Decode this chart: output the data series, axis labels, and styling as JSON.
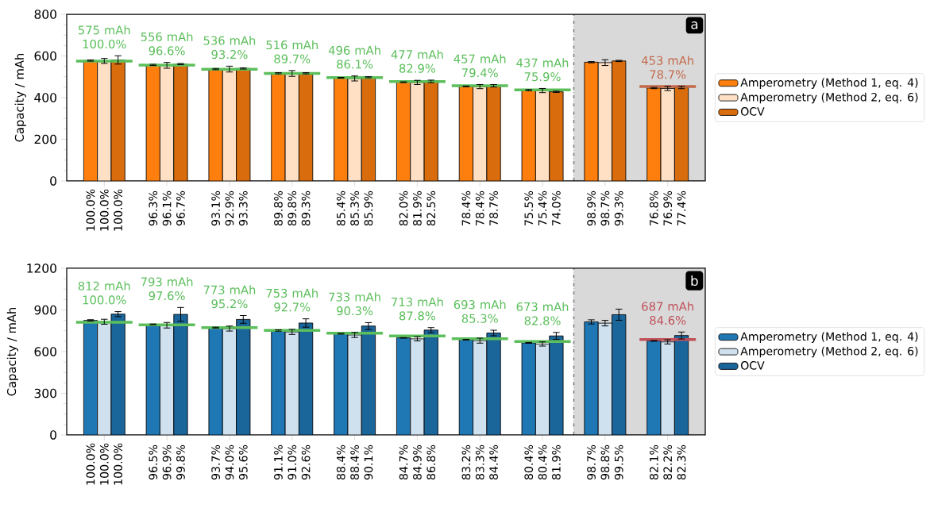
{
  "chart_data": [
    {
      "type": "bar",
      "ylabel": "Capacity / mAh",
      "ylim": [
        0,
        800
      ],
      "yticks": [
        0,
        200,
        400,
        600,
        800
      ],
      "legend": "right",
      "categories": [
        "100.0% 100.0% 100.0%",
        "96.3% 96.1% 96.7%",
        "93.1% 92.9% 93.3%",
        "89.8% 89.8% 89.3%",
        "85.4% 85.3% 85.9%",
        "82.0% 81.9% 82.5%",
        "78.4% 78.4% 78.7%",
        "75.5% 75.4% 74.0%",
        "98.9% 98.7% 99.3%",
        "76.8% 76.9% 77.4%"
      ],
      "series": [
        {
          "name": "Amperometry (Method 1, eq. 4)",
          "color": "#ff7f0e",
          "values": [
            578,
            557,
            537,
            517,
            495,
            474,
            454,
            436,
            570,
            446
          ],
          "errors": [
            3,
            3,
            3,
            3,
            2,
            2,
            2,
            3,
            3,
            3
          ]
        },
        {
          "name": "Amperometry (Method 2, eq. 6)",
          "color": "#ffe0c4",
          "values": [
            576,
            555,
            537,
            516,
            492,
            473,
            453,
            434,
            568,
            444
          ],
          "errors": [
            12,
            14,
            14,
            14,
            12,
            10,
            10,
            10,
            14,
            10
          ]
        },
        {
          "name": "OCV",
          "color": "#d96c0c",
          "values": [
            581,
            561,
            540,
            517,
            498,
            478,
            457,
            428,
            576,
            449
          ],
          "errors": [
            20,
            3,
            3,
            3,
            3,
            6,
            6,
            3,
            3,
            6
          ]
        }
      ],
      "ref_lines": [
        {
          "axis": "y",
          "value": 575,
          "color": "#5cbf5c"
        },
        {
          "axis": "y",
          "value": 556,
          "color": "#5cbf5c"
        },
        {
          "axis": "y",
          "value": 536,
          "color": "#5cbf5c"
        },
        {
          "axis": "y",
          "value": 516,
          "color": "#5cbf5c"
        },
        {
          "axis": "y",
          "value": 496,
          "color": "#5cbf5c"
        },
        {
          "axis": "y",
          "value": 477,
          "color": "#5cbf5c"
        },
        {
          "axis": "y",
          "value": 457,
          "color": "#5cbf5c"
        },
        {
          "axis": "y",
          "value": 437,
          "color": "#5cbf5c"
        },
        {
          "axis": "y",
          "value": 453,
          "color": "#c26a4a"
        }
      ],
      "annotations": [
        {
          "text": "575 mAh 100.0%",
          "x": "100.0% 100.0% 100.0%",
          "y": 575
        },
        {
          "text": "556 mAh 96.6%",
          "x": "96.3% 96.1% 96.7%",
          "y": 556
        },
        {
          "text": "536 mAh 93.2%",
          "x": "93.1% 92.9% 93.3%",
          "y": 536
        },
        {
          "text": "516 mAh 89.7%",
          "x": "89.8% 89.8% 89.3%",
          "y": 516
        },
        {
          "text": "496 mAh 86.1%",
          "x": "85.4% 85.3% 85.9%",
          "y": 496
        },
        {
          "text": "477 mAh 82.9%",
          "x": "82.0% 81.9% 82.5%",
          "y": 477
        },
        {
          "text": "457 mAh 79.4%",
          "x": "78.4% 78.4% 78.7%",
          "y": 457
        },
        {
          "text": "437 mAh 75.9%",
          "x": "75.5% 75.4% 74.0%",
          "y": 437
        },
        {
          "text": "453 mAh 78.7%",
          "x": "76.8% 76.9% 77.4%",
          "y": 453
        },
        "a"
      ]
    },
    {
      "type": "bar",
      "ylabel": "Capacity / mAh",
      "ylim": [
        0,
        1200
      ],
      "yticks": [
        0,
        300,
        600,
        900,
        1200
      ],
      "legend": "right",
      "categories": [
        "100.0% 100.0% 100.0%",
        "96.5% 96.9% 99.8%",
        "93.7% 94.0% 95.6%",
        "91.1% 91.0% 92.6%",
        "88.4% 88.4% 90.1%",
        "84.7% 84.9% 86.8%",
        "83.2% 83.3% 84.4%",
        "80.4% 80.4% 81.9%",
        "98.7% 98.8% 99.5%",
        "82.1% 82.2% 82.3%"
      ],
      "series": [
        {
          "name": "Amperometry (Method 1, eq. 4)",
          "color": "#1f77b4",
          "values": [
            825,
            796,
            773,
            752,
            729,
            699,
            686,
            663,
            814,
            677
          ],
          "errors": [
            5,
            3,
            3,
            5,
            3,
            2,
            2,
            3,
            15,
            3
          ]
        },
        {
          "name": "Amperometry (Method 2, eq. 6)",
          "color": "#cfe0ee",
          "values": [
            815,
            790,
            766,
            742,
            720,
            692,
            679,
            655,
            805,
            670
          ],
          "errors": [
            18,
            20,
            18,
            18,
            18,
            15,
            18,
            15,
            20,
            15
          ]
        },
        {
          "name": "OCV",
          "color": "#1a659a",
          "values": [
            870,
            868,
            832,
            806,
            784,
            755,
            734,
            713,
            866,
            716
          ],
          "errors": [
            18,
            50,
            28,
            30,
            25,
            18,
            20,
            25,
            40,
            25
          ]
        }
      ],
      "ref_lines": [
        {
          "axis": "y",
          "value": 812,
          "color": "#5cbf5c"
        },
        {
          "axis": "y",
          "value": 793,
          "color": "#5cbf5c"
        },
        {
          "axis": "y",
          "value": 773,
          "color": "#5cbf5c"
        },
        {
          "axis": "y",
          "value": 753,
          "color": "#5cbf5c"
        },
        {
          "axis": "y",
          "value": 733,
          "color": "#5cbf5c"
        },
        {
          "axis": "y",
          "value": 713,
          "color": "#5cbf5c"
        },
        {
          "axis": "y",
          "value": 693,
          "color": "#5cbf5c"
        },
        {
          "axis": "y",
          "value": 673,
          "color": "#5cbf5c"
        },
        {
          "axis": "y",
          "value": 687,
          "color": "#c0505a"
        }
      ],
      "annotations": [
        {
          "text": "812 mAh 100.0%",
          "x": "100.0% 100.0% 100.0%",
          "y": 812
        },
        {
          "text": "793 mAh 97.6%",
          "x": "96.5% 96.9% 99.8%",
          "y": 793
        },
        {
          "text": "773 mAh 95.2%",
          "x": "93.7% 94.0% 95.6%",
          "y": 773
        },
        {
          "text": "753 mAh 92.7%",
          "x": "91.1% 91.0% 92.6%",
          "y": 753
        },
        {
          "text": "733 mAh 90.3%",
          "x": "88.4% 88.4% 90.1%",
          "y": 733
        },
        {
          "text": "713 mAh 87.8%",
          "x": "84.7% 84.9% 86.8%",
          "y": 713
        },
        {
          "text": "693 mAh 85.3%",
          "x": "83.2% 83.3% 84.4%",
          "y": 693
        },
        {
          "text": "673 mAh 82.8%",
          "x": "80.4% 80.4% 81.9%",
          "y": 673
        },
        {
          "text": "687 mAh 84.6%",
          "x": "82.1% 82.2% 82.3%",
          "y": 687
        },
        "b"
      ]
    }
  ]
}
